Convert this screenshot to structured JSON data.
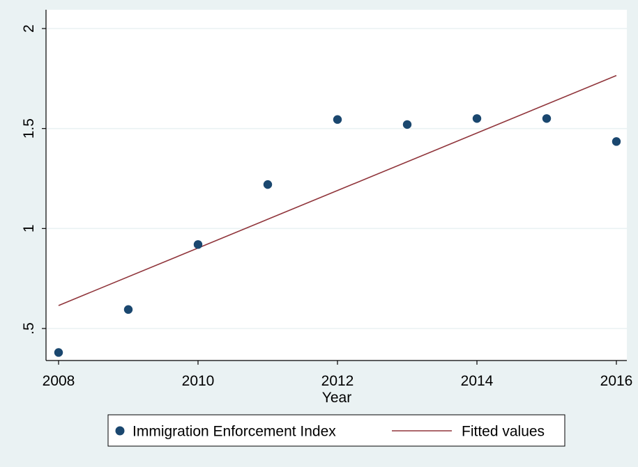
{
  "chart_data": {
    "type": "scatter",
    "title": "",
    "xlabel": "Year",
    "ylabel": "",
    "xlim": [
      2008,
      2016
    ],
    "ylim": [
      0.39,
      2
    ],
    "x_ticks": [
      2008,
      2010,
      2012,
      2014,
      2016
    ],
    "x_tick_labels": [
      "2008",
      "2010",
      "2012",
      "2014",
      "2016"
    ],
    "y_ticks": [
      0.5,
      1,
      1.5,
      2
    ],
    "y_tick_labels": [
      ".5",
      "1",
      "1.5",
      "2"
    ],
    "grid": true,
    "legend_placement": "bottom",
    "series": [
      {
        "name": "Immigration Enforcement Index",
        "kind": "scatter",
        "color": "#1a476f",
        "x": [
          2008,
          2009,
          2010,
          2011,
          2012,
          2013,
          2014,
          2015,
          2016
        ],
        "y": [
          0.38,
          0.595,
          0.92,
          1.22,
          1.545,
          1.52,
          1.55,
          1.55,
          1.435
        ]
      },
      {
        "name": "Fitted values",
        "kind": "line",
        "color": "#90353b",
        "x": [
          2008,
          2016
        ],
        "y": [
          0.615,
          1.765
        ]
      }
    ]
  },
  "colors": {
    "background": "#eaf2f3",
    "plot_background": "#ffffff",
    "grid": "#eaf2f3",
    "axis": "#000000"
  }
}
